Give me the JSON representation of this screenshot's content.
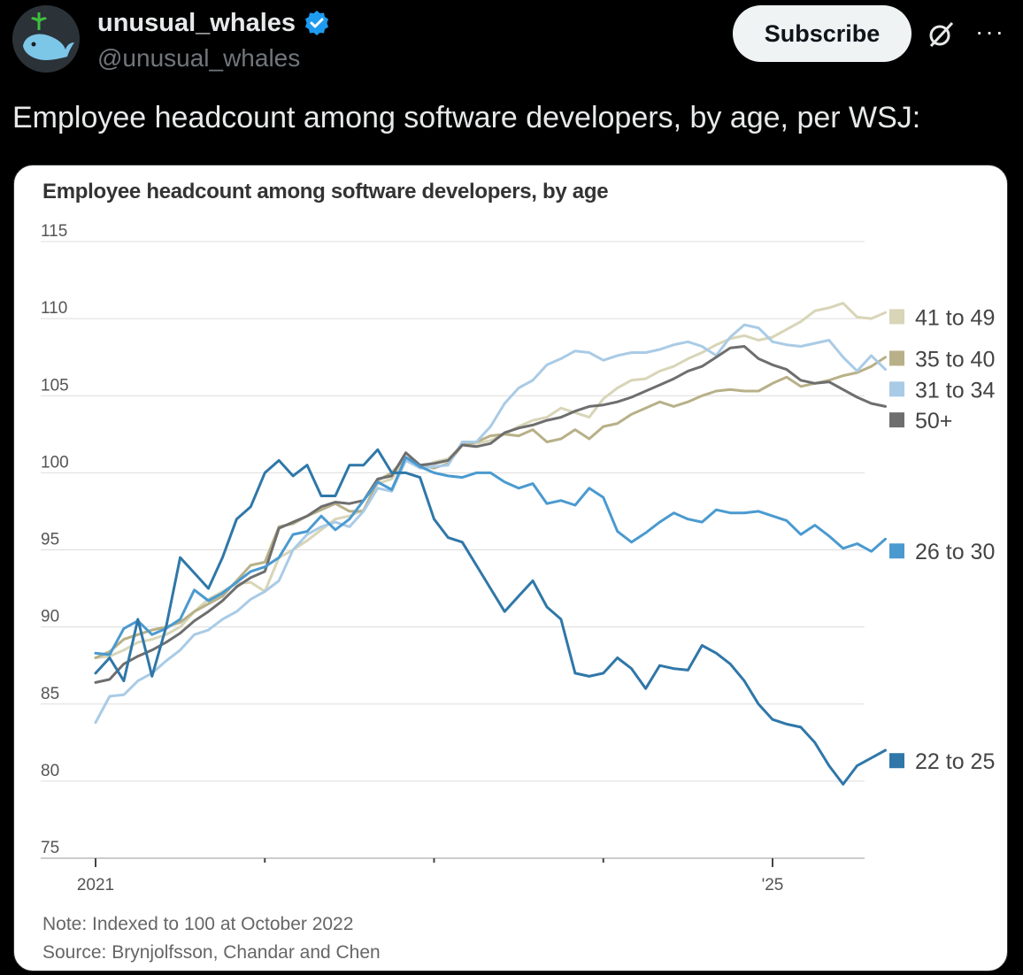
{
  "header": {
    "display_name": "unusual_whales",
    "handle": "@unusual_whales",
    "subscribe_label": "Subscribe",
    "more_label": "···"
  },
  "tweet": {
    "text": "Employee headcount among software developers, by age, per WSJ:"
  },
  "icons": {
    "avatar": "whale-avatar",
    "verified": "verified-badge-icon",
    "grok": "grok-icon",
    "more": "more-icon"
  },
  "colors": {
    "background": "#000000",
    "verified": "#1d9bf0",
    "subscribe_bg": "#eff3f4"
  },
  "chart_data": {
    "type": "line",
    "title": "Employee headcount among software developers, by age",
    "note": "Note: Indexed to 100 at October 2022",
    "source": "Source: Brynjolfsson, Chandar and Chen",
    "ylim": [
      75,
      115
    ],
    "yticks": [
      115,
      110,
      105,
      100,
      95,
      90,
      85,
      80,
      75
    ],
    "xlim": [
      0,
      57
    ],
    "xticks": [
      0,
      12,
      24,
      36,
      48
    ],
    "xtick_labels": [
      "2021",
      "",
      "",
      "",
      "'25"
    ],
    "grid": true,
    "legend_position": "right",
    "series": [
      {
        "name": "41 to 49",
        "color": "#d8d5b8",
        "values": [
          88.0,
          88.1,
          88.5,
          89.0,
          89.2,
          89.5,
          90.0,
          91.0,
          91.8,
          92.3,
          92.8,
          92.9,
          92.3,
          94.5,
          95.0,
          95.6,
          96.3,
          97.0,
          97.2,
          97.6,
          99.3,
          99.6,
          101.0,
          100.3,
          100.7,
          100.9,
          101.8,
          101.9,
          102.1,
          102.5,
          103.0,
          103.4,
          103.6,
          104.2,
          103.9,
          103.6,
          104.8,
          105.5,
          106.0,
          106.1,
          106.6,
          106.9,
          107.4,
          107.8,
          108.3,
          108.7,
          108.9,
          108.6,
          108.8,
          109.3,
          109.8,
          110.5,
          110.7,
          111.0,
          110.1,
          110.0,
          110.4
        ]
      },
      {
        "name": "35 to 40",
        "color": "#b8b088",
        "values": [
          88.0,
          88.4,
          89.2,
          89.5,
          89.8,
          90.0,
          90.3,
          91.0,
          91.5,
          92.0,
          93.0,
          94.0,
          94.2,
          96.5,
          96.7,
          97.2,
          97.6,
          98.0,
          97.5,
          97.5,
          99.5,
          100.0,
          101.0,
          100.5,
          100.3,
          100.6,
          101.8,
          102.0,
          102.4,
          102.5,
          102.4,
          102.8,
          102.0,
          102.2,
          102.8,
          102.2,
          103.0,
          103.2,
          103.8,
          104.2,
          104.6,
          104.3,
          104.6,
          105.0,
          105.3,
          105.4,
          105.3,
          105.3,
          105.8,
          106.2,
          105.6,
          105.8,
          106.0,
          106.3,
          106.5,
          106.9,
          107.5
        ]
      },
      {
        "name": "31 to 34",
        "color": "#a9cbe6",
        "values": [
          83.8,
          85.5,
          85.6,
          86.5,
          87.0,
          87.8,
          88.5,
          89.5,
          89.8,
          90.5,
          91.0,
          91.8,
          92.3,
          93.0,
          95.0,
          96.0,
          96.5,
          96.8,
          96.5,
          97.5,
          99.0,
          98.8,
          100.8,
          100.3,
          100.4,
          100.5,
          102.0,
          102.0,
          103.0,
          104.5,
          105.5,
          106.0,
          107.0,
          107.4,
          107.9,
          107.8,
          107.3,
          107.6,
          107.8,
          107.8,
          108.0,
          108.3,
          108.5,
          108.2,
          107.6,
          108.8,
          109.6,
          109.4,
          108.5,
          108.3,
          108.2,
          108.4,
          108.6,
          107.5,
          106.6,
          107.6,
          106.7
        ]
      },
      {
        "name": "50+",
        "color": "#6e6e6e",
        "values": [
          86.4,
          86.6,
          87.6,
          88.1,
          88.5,
          89.0,
          89.6,
          90.4,
          91.0,
          91.7,
          92.6,
          93.2,
          93.6,
          96.4,
          96.8,
          97.2,
          97.8,
          98.1,
          98.0,
          98.2,
          99.6,
          99.8,
          101.3,
          100.5,
          100.6,
          100.8,
          101.8,
          101.7,
          101.9,
          102.6,
          102.9,
          103.1,
          103.4,
          103.6,
          104.0,
          104.3,
          104.4,
          104.6,
          104.9,
          105.3,
          105.7,
          106.1,
          106.6,
          106.9,
          107.5,
          108.1,
          108.2,
          107.4,
          107.0,
          106.7,
          106.0,
          105.8,
          105.9,
          105.4,
          104.9,
          104.5,
          104.3
        ]
      },
      {
        "name": "26 to 30",
        "color": "#4a9ad0",
        "values": [
          88.3,
          88.2,
          89.9,
          90.4,
          89.5,
          89.9,
          90.5,
          92.4,
          91.7,
          92.2,
          92.9,
          93.6,
          93.9,
          94.5,
          96.0,
          96.2,
          97.2,
          96.3,
          97.0,
          98.2,
          99.4,
          98.9,
          101.0,
          100.4,
          100.0,
          99.8,
          99.7,
          100.0,
          100.0,
          99.4,
          99.0,
          99.3,
          98.0,
          98.2,
          97.9,
          99.0,
          98.4,
          96.2,
          95.5,
          96.1,
          96.8,
          97.4,
          97.0,
          96.8,
          97.6,
          97.4,
          97.4,
          97.5,
          97.2,
          96.9,
          96.0,
          96.6,
          95.9,
          95.1,
          95.4,
          94.9,
          95.7
        ]
      },
      {
        "name": "22 to 25",
        "color": "#2f77a8",
        "values": [
          87.0,
          88.0,
          86.5,
          90.5,
          86.8,
          90.0,
          94.5,
          93.5,
          92.5,
          94.5,
          97.0,
          97.8,
          100.0,
          100.8,
          99.8,
          100.5,
          98.5,
          98.5,
          100.5,
          100.5,
          101.5,
          100.0,
          100.0,
          99.7,
          97.0,
          95.8,
          95.5,
          94.0,
          92.5,
          91.0,
          92.0,
          93.0,
          91.3,
          90.5,
          87.0,
          86.8,
          87.0,
          88.0,
          87.3,
          86.0,
          87.5,
          87.3,
          87.2,
          88.8,
          88.3,
          87.6,
          86.5,
          85.0,
          84.0,
          83.7,
          83.5,
          82.5,
          81.0,
          79.8,
          81.0,
          81.5,
          82.0
        ]
      }
    ]
  }
}
